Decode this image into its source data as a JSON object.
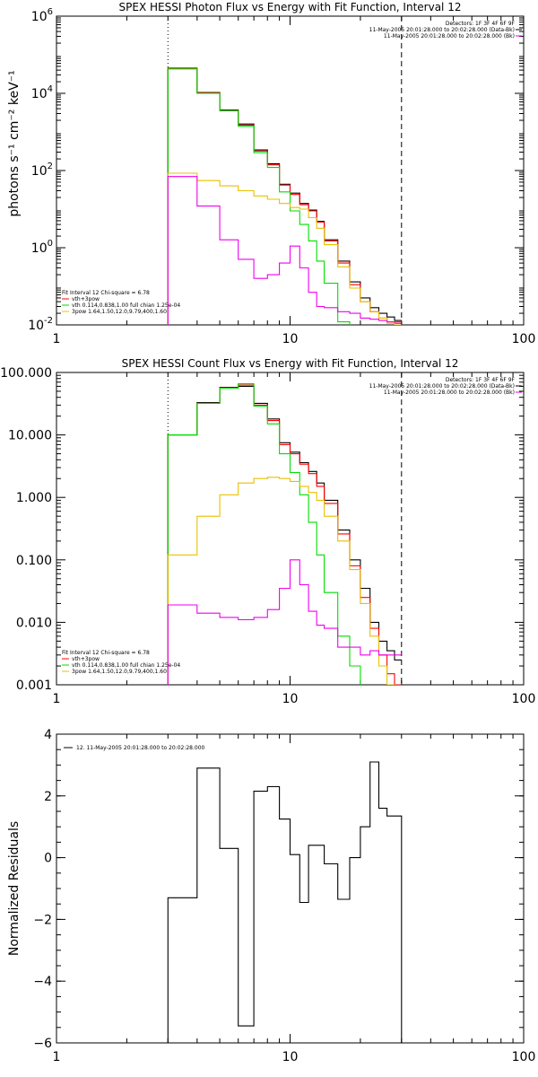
{
  "chart_data": [
    {
      "type": "line",
      "title": "SPEX HESSI Photon Flux vs Energy with Fit Function, Interval 12",
      "xlabel": "",
      "ylabel": "photons s⁻¹ cm⁻² keV⁻¹",
      "xscale": "log",
      "yscale": "log",
      "xlim": [
        1,
        100
      ],
      "ylim": [
        0.01,
        1000000
      ],
      "xticks": [
        {
          "v": 1,
          "label": "1"
        },
        {
          "v": 10,
          "label": "10"
        },
        {
          "v": 100,
          "label": "100"
        }
      ],
      "yticks": [
        {
          "v": 0.01,
          "base": "10",
          "exp": "-2"
        },
        {
          "v": 1,
          "base": "10",
          "exp": "0"
        },
        {
          "v": 100,
          "base": "10",
          "exp": "2"
        },
        {
          "v": 10000,
          "base": "10",
          "exp": "4"
        },
        {
          "v": 1000000,
          "base": "10",
          "exp": "6"
        }
      ],
      "vlines": [
        {
          "x": 3,
          "style": "dotted"
        },
        {
          "x": 30,
          "style": "dashed"
        }
      ],
      "header": [
        "Detectors: 1F 3F 4F 6F 9F",
        "11-May-2005 20:01:28.000 to 20:02:28.000 (Data-Bk)",
        "11-May-2005 20:01:28.000 to 20:02:28.000 (Bk)"
      ],
      "legend": {
        "title": "Fit Interval 12   Chi-square = 6.78",
        "entries": [
          {
            "text": "vth+3pow",
            "color": "#ff0000"
          },
          {
            "text": "vth 0.114,0.838,1.00  full chian 1.25e-04",
            "color": "#00dd00"
          },
          {
            "text": "3pow 1.64,1.50,12.0,9.79,400,1.60",
            "color": "#e8c000"
          }
        ]
      },
      "series": [
        {
          "name": "Data-Bk",
          "color": "#000000",
          "edges": [
            3,
            4,
            5,
            6,
            7,
            8,
            9,
            10,
            11,
            12,
            13,
            14,
            16,
            18,
            20,
            22,
            24,
            26,
            28,
            30
          ],
          "values": [
            45000,
            10500,
            3700,
            1600,
            340,
            150,
            44,
            26,
            14,
            9.5,
            4.8,
            1.6,
            0.45,
            0.13,
            0.05,
            0.028,
            0.02,
            0.016,
            0.013
          ]
        },
        {
          "name": "vth+3pow",
          "color": "#ff0000",
          "edges": [
            3,
            4,
            5,
            6,
            7,
            8,
            9,
            10,
            11,
            12,
            13,
            14,
            16,
            18,
            20,
            22,
            24,
            26,
            28,
            30
          ],
          "values": [
            44000,
            10300,
            3600,
            1500,
            320,
            140,
            42,
            24,
            13,
            9,
            4.6,
            1.5,
            0.4,
            0.11,
            0.04,
            0.022,
            0.015,
            0.012,
            0.011
          ]
        },
        {
          "name": "vth",
          "color": "#00dd00",
          "edges": [
            3,
            4,
            5,
            6,
            7,
            8,
            9,
            10,
            11,
            12,
            13,
            14,
            16,
            18,
            20,
            22,
            24,
            26,
            28,
            30
          ],
          "values": [
            43000,
            10000,
            3500,
            1400,
            290,
            120,
            28,
            9,
            4,
            1.5,
            0.45,
            0.12,
            0.012,
            0.008,
            0.008,
            0.008,
            0.008,
            0.008,
            0.008
          ]
        },
        {
          "name": "3pow",
          "color": "#e8c000",
          "edges": [
            3,
            4,
            5,
            6,
            7,
            8,
            9,
            10,
            11,
            12,
            13,
            14,
            16,
            18,
            20,
            22,
            24,
            26,
            28,
            30
          ],
          "values": [
            85,
            55,
            40,
            30,
            22,
            18,
            14,
            11,
            10,
            6,
            3.2,
            1.2,
            0.32,
            0.09,
            0.04,
            0.022,
            0.015,
            0.011,
            0.01
          ]
        },
        {
          "name": "Bk",
          "color": "#ee00ee",
          "edges": [
            3,
            4,
            5,
            6,
            7,
            8,
            9,
            10,
            11,
            12,
            13,
            14,
            16,
            18,
            20,
            22,
            24,
            26,
            28,
            30
          ],
          "values": [
            70,
            12,
            1.6,
            0.5,
            0.16,
            0.2,
            0.4,
            1.1,
            0.3,
            0.07,
            0.03,
            0.028,
            0.022,
            0.02,
            0.015,
            0.014,
            0.013,
            0.012,
            0.012
          ]
        }
      ]
    },
    {
      "type": "line",
      "title": "SPEX HESSI Count Flux vs Energy with Fit Function, Interval 12",
      "xlabel": "",
      "ylabel": "",
      "xscale": "log",
      "yscale": "log",
      "xlim": [
        1,
        100
      ],
      "ylim": [
        0.001,
        100
      ],
      "xticks": [
        {
          "v": 1,
          "label": "1"
        },
        {
          "v": 10,
          "label": "10"
        },
        {
          "v": 100,
          "label": "100"
        }
      ],
      "yticks": [
        {
          "v": 0.001,
          "label": "0.001"
        },
        {
          "v": 0.01,
          "label": "0.010"
        },
        {
          "v": 0.1,
          "label": "0.100"
        },
        {
          "v": 1,
          "label": "1.000"
        },
        {
          "v": 10,
          "label": "10.000"
        },
        {
          "v": 100,
          "label": "100.000"
        }
      ],
      "vlines": [
        {
          "x": 3,
          "style": "dotted"
        },
        {
          "x": 30,
          "style": "dashed"
        }
      ],
      "header": [
        "Detectors: 1F 3F 4F 6F 9F",
        "11-May-2005 20:01:28.000 to 20:02:28.000 (Data-Bk)",
        "11-May-2005 20:01:28.000 to 20:02:28.000 (Bk)"
      ],
      "legend": {
        "title": "Fit Interval 12   Chi-square = 6.78",
        "entries": [
          {
            "text": "vth+3pow",
            "color": "#ff0000"
          },
          {
            "text": "vth 0.114,0.838,1.00  full chian 1.25e-04",
            "color": "#00dd00"
          },
          {
            "text": "3pow 1.64,1.50,12.0,9.79,400,1.60",
            "color": "#e8c000"
          }
        ]
      },
      "series": [
        {
          "name": "Data-Bk",
          "color": "#000000",
          "edges": [
            3,
            4,
            5,
            6,
            7,
            8,
            9,
            10,
            11,
            12,
            13,
            14,
            16,
            18,
            20,
            22,
            24,
            26,
            28,
            30
          ],
          "values": [
            10,
            33,
            58,
            60,
            32,
            18,
            7.5,
            5.3,
            3.6,
            2.6,
            1.7,
            0.9,
            0.3,
            0.1,
            0.035,
            0.01,
            0.005,
            0.0035,
            0.0025
          ]
        },
        {
          "name": "vth+3pow",
          "color": "#ff0000",
          "edges": [
            3,
            4,
            5,
            6,
            7,
            8,
            9,
            10,
            11,
            12,
            13,
            14,
            16,
            18,
            20,
            22,
            24,
            26,
            28,
            30
          ],
          "values": [
            10,
            32,
            57,
            63,
            30,
            17,
            7,
            5,
            3.4,
            2.4,
            1.5,
            0.8,
            0.26,
            0.08,
            0.025,
            0.008,
            0.003,
            0.0015,
            0.001
          ]
        },
        {
          "name": "vth",
          "color": "#00dd00",
          "edges": [
            3,
            4,
            5,
            6,
            7,
            8,
            9,
            10,
            11,
            12,
            13,
            14,
            16,
            18,
            20,
            22,
            24,
            26,
            28,
            30
          ],
          "values": [
            10,
            32,
            56,
            66,
            29,
            15,
            5,
            2.5,
            1.1,
            0.4,
            0.12,
            0.03,
            0.006,
            0.002,
            0.0009,
            0.0009,
            0.0009,
            0.0009,
            0.0009
          ]
        },
        {
          "name": "3pow",
          "color": "#e8c000",
          "edges": [
            3,
            4,
            5,
            6,
            7,
            8,
            9,
            10,
            11,
            12,
            13,
            14,
            16,
            18,
            20,
            22,
            24,
            26,
            28,
            30
          ],
          "values": [
            0.12,
            0.5,
            1.1,
            1.7,
            2.0,
            2.1,
            2.0,
            1.8,
            1.5,
            1.2,
            0.9,
            0.5,
            0.2,
            0.07,
            0.02,
            0.006,
            0.002,
            0.001,
            0.0009
          ]
        },
        {
          "name": "Bk",
          "color": "#ee00ee",
          "edges": [
            3,
            4,
            5,
            6,
            7,
            8,
            9,
            10,
            11,
            12,
            13,
            14,
            16,
            18,
            20,
            22,
            24,
            26,
            28,
            30
          ],
          "values": [
            0.019,
            0.014,
            0.012,
            0.011,
            0.012,
            0.016,
            0.035,
            0.1,
            0.04,
            0.015,
            0.009,
            0.008,
            0.004,
            0.004,
            0.003,
            0.0035,
            0.003,
            0.003,
            0.003
          ]
        }
      ]
    },
    {
      "type": "line",
      "title": "",
      "xlabel": "",
      "ylabel": "Normalized Residuals",
      "xscale": "log",
      "yscale": "linear",
      "xlim": [
        1,
        100
      ],
      "ylim": [
        -6,
        4
      ],
      "xticks": [
        {
          "v": 1,
          "label": "1"
        },
        {
          "v": 10,
          "label": "10"
        },
        {
          "v": 100,
          "label": "100"
        }
      ],
      "yticks": [
        {
          "v": -6,
          "label": "−6"
        },
        {
          "v": -4,
          "label": "−4"
        },
        {
          "v": -2,
          "label": "−2"
        },
        {
          "v": 0,
          "label": "0"
        },
        {
          "v": 2,
          "label": "2"
        },
        {
          "v": 4,
          "label": "4"
        }
      ],
      "vlines": [],
      "header": [],
      "legend": {
        "title": "",
        "entries": [
          {
            "text": "12. 11-May-2005 20:01:28.000 to 20:02:28.000",
            "color": "#000000"
          }
        ]
      },
      "series": [
        {
          "name": "12. 11-May-2005 20:01:28.000 to 20:02:28.000",
          "color": "#000000",
          "edges": [
            3,
            4,
            5,
            6,
            7,
            8,
            9,
            10,
            11,
            12,
            13,
            14,
            16,
            18,
            20,
            22,
            24,
            26,
            28,
            30
          ],
          "values": [
            -1.3,
            2.9,
            0.3,
            -5.45,
            2.15,
            2.3,
            1.25,
            0.1,
            -1.45,
            0.4,
            0.4,
            -0.2,
            -1.35,
            0.0,
            1.0,
            3.1,
            1.6,
            1.35,
            1.35
          ]
        }
      ]
    }
  ]
}
